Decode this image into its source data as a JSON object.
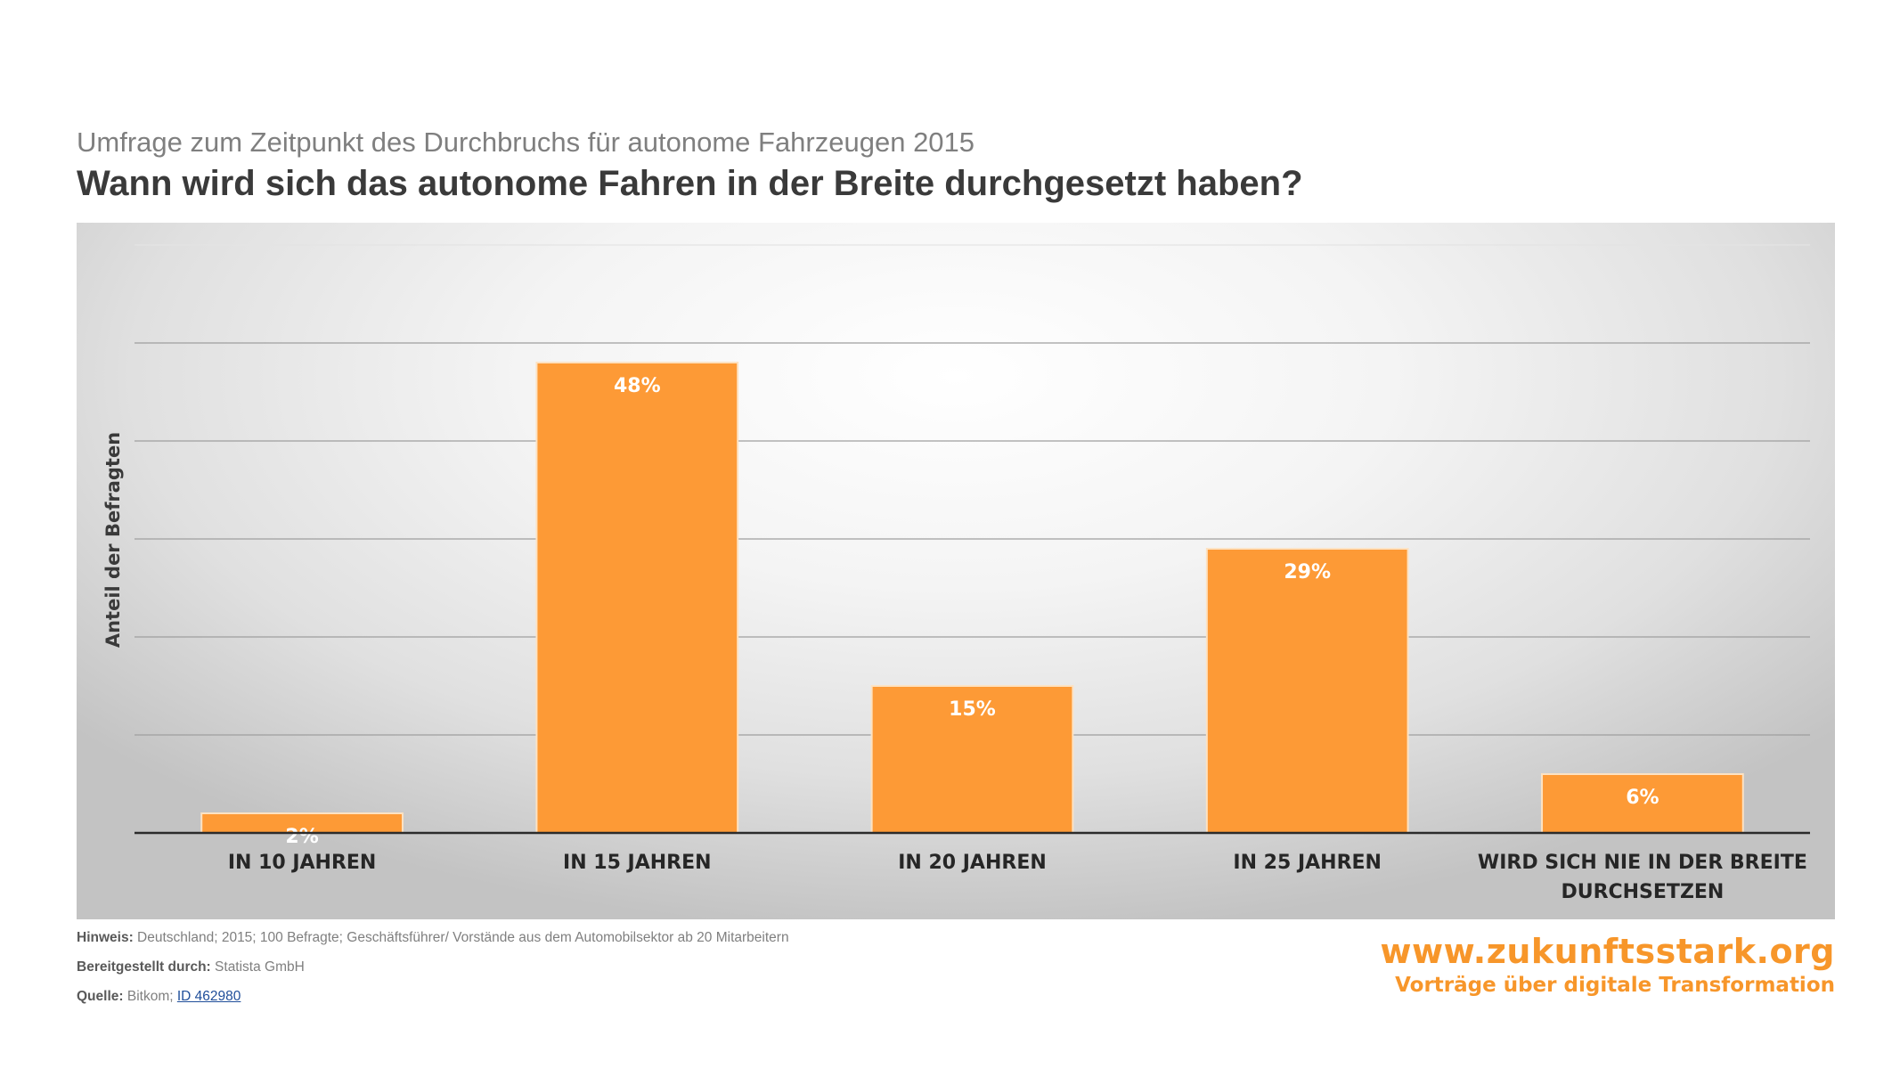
{
  "header": {
    "subtitle": "Umfrage zum Zeitpunkt des Durchbruchs für autonome Fahrzeugen 2015",
    "title": "Wann wird sich das autonome Fahren in der Breite durchgesetzt haben?"
  },
  "chart_data": {
    "type": "bar",
    "title": "Wann wird sich das autonome Fahren in der Breite durchgesetzt haben?",
    "subtitle": "Umfrage zum Zeitpunkt des Durchbruchs für autonome Fahrzeugen 2015",
    "ylabel": "Anteil der Befragten",
    "xlabel": "",
    "categories": [
      [
        "IN 10 JAHREN"
      ],
      [
        "IN 15 JAHREN"
      ],
      [
        "IN 20 JAHREN"
      ],
      [
        "IN 25 JAHREN"
      ],
      [
        "WIRD SICH NIE IN DER BREITE",
        "DURCHSETZEN"
      ]
    ],
    "values": [
      2,
      48,
      15,
      29,
      6
    ],
    "value_labels": [
      "2%",
      "48%",
      "15%",
      "29%",
      "6%"
    ],
    "unit": "%",
    "ylim": [
      0,
      60
    ],
    "gridlines": [
      10,
      20,
      30,
      40,
      50,
      60
    ],
    "grid": true,
    "legend": "none",
    "bar_color": "#fd9a36",
    "bar_edge_color": "#fde2c2"
  },
  "notes": {
    "hinweis_key": "Hinweis:",
    "hinweis_value": "Deutschland; 2015; 100 Befragte; Geschäftsführer/  Vorstände aus dem Automobilsektor ab 20 Mitarbeitern",
    "bereitgestellt_key": "Bereitgestellt durch:",
    "bereitgestellt_value": "Statista GmbH",
    "quelle_key": "Quelle:",
    "quelle_value": "Bitkom; ",
    "quelle_link": "ID 462980"
  },
  "brand": {
    "url": "www.zukunftsstark.org",
    "tagline": "Vorträge über digitale Transformation",
    "color": "#f7962a"
  }
}
